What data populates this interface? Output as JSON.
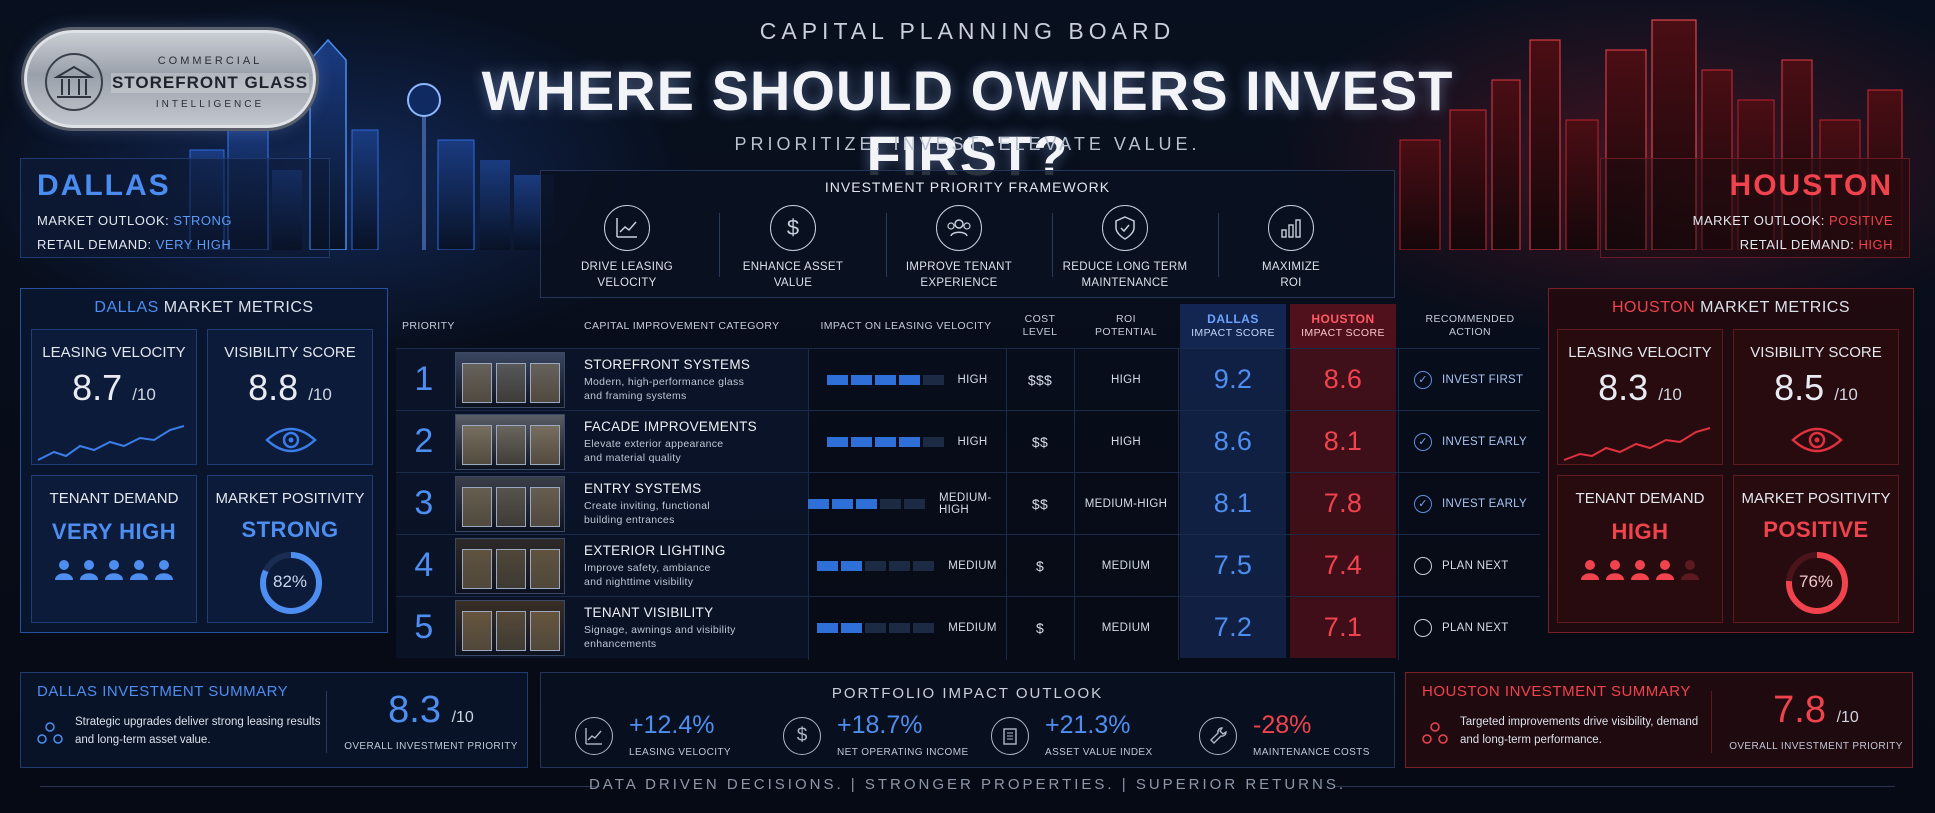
{
  "logo": {
    "line1": "COMMERCIAL",
    "line2": "STOREFRONT GLASS",
    "line3": "INTELLIGENCE"
  },
  "header": {
    "board": "CAPITAL PLANNING BOARD",
    "title": "WHERE SHOULD OWNERS INVEST FIRST?",
    "tagline": "PRIORITIZE. INVEST. ELEVATE VALUE."
  },
  "dallas": {
    "name": "DALLAS",
    "outlook_label": "MARKET OUTLOOK:",
    "outlook": "STRONG",
    "demand_label": "RETAIL DEMAND:",
    "demand": "VERY HIGH",
    "metrics_city": "DALLAS",
    "metrics_title": "MARKET METRICS",
    "leasing_label": "LEASING VELOCITY",
    "leasing_value": "8.7",
    "leasing_unit": "/10",
    "visibility_label": "VISIBILITY SCORE",
    "visibility_value": "8.8",
    "visibility_unit": "/10",
    "tenant_label": "TENANT DEMAND",
    "tenant_value": "VERY HIGH",
    "tenant_icons_filled": 5,
    "positivity_label": "MARKET POSITIVITY",
    "positivity_value": "STRONG",
    "positivity_pct": "82%",
    "positivity_fraction": 0.82,
    "summary_title": "DALLAS INVESTMENT SUMMARY",
    "summary_text": "Strategic upgrades deliver strong leasing results and long-term asset value.",
    "summary_value": "8.3",
    "summary_unit": "/10",
    "summary_label": "OVERALL INVESTMENT PRIORITY",
    "accent": "#4d8ef0"
  },
  "houston": {
    "name": "HOUSTON",
    "outlook_label": "MARKET OUTLOOK:",
    "outlook": "POSITIVE",
    "demand_label": "RETAIL DEMAND:",
    "demand": "HIGH",
    "metrics_city": "HOUSTON",
    "metrics_title": "MARKET METRICS",
    "leasing_label": "LEASING VELOCITY",
    "leasing_value": "8.3",
    "leasing_unit": "/10",
    "visibility_label": "VISIBILITY SCORE",
    "visibility_value": "8.5",
    "visibility_unit": "/10",
    "tenant_label": "TENANT DEMAND",
    "tenant_value": "HIGH",
    "tenant_icons_filled": 4,
    "positivity_label": "MARKET POSITIVITY",
    "positivity_value": "POSITIVE",
    "positivity_pct": "76%",
    "positivity_fraction": 0.76,
    "summary_title": "HOUSTON INVESTMENT SUMMARY",
    "summary_text": "Targeted improvements drive visibility, demand and long-term performance.",
    "summary_value": "7.8",
    "summary_unit": "/10",
    "summary_label": "OVERALL INVESTMENT PRIORITY",
    "accent": "#f0434d"
  },
  "framework": {
    "title": "INVESTMENT PRIORITY FRAMEWORK",
    "items": [
      {
        "icon": "chart-growth-icon",
        "line1": "DRIVE LEASING",
        "line2": "VELOCITY"
      },
      {
        "icon": "dollar-icon",
        "line1": "ENHANCE ASSET",
        "line2": "VALUE"
      },
      {
        "icon": "people-icon",
        "line1": "IMPROVE TENANT",
        "line2": "EXPERIENCE"
      },
      {
        "icon": "shield-check-icon",
        "line1": "REDUCE LONG TERM",
        "line2": "MAINTENANCE"
      },
      {
        "icon": "bar-chart-icon",
        "line1": "MAXIMIZE",
        "line2": "ROI"
      }
    ]
  },
  "table": {
    "headers": {
      "priority": "PRIORITY",
      "category": "CAPITAL IMPROVEMENT CATEGORY",
      "impact": "IMPACT ON LEASING VELOCITY",
      "cost1": "COST",
      "cost2": "LEVEL",
      "roi1": "ROI",
      "roi2": "POTENTIAL",
      "dal1": "DALLAS",
      "dal2": "IMPACT SCORE",
      "hou1": "HOUSTON",
      "hou2": "IMPACT SCORE",
      "action1": "RECOMMENDED",
      "action2": "ACTION"
    },
    "rows": [
      {
        "priority": "1",
        "title": "STOREFRONT SYSTEMS",
        "desc1": "Modern, high-performance glass",
        "desc2": "and framing systems",
        "impact": "HIGH",
        "impact_segments": 4,
        "cost": "$$$",
        "roi": "HIGH",
        "dallas": "9.2",
        "houston": "8.6",
        "action": "INVEST FIRST",
        "checked": true
      },
      {
        "priority": "2",
        "title": "FACADE IMPROVEMENTS",
        "desc1": "Elevate exterior appearance",
        "desc2": "and material quality",
        "impact": "HIGH",
        "impact_segments": 4,
        "cost": "$$",
        "roi": "HIGH",
        "dallas": "8.6",
        "houston": "8.1",
        "action": "INVEST EARLY",
        "checked": true
      },
      {
        "priority": "3",
        "title": "ENTRY SYSTEMS",
        "desc1": "Create inviting, functional",
        "desc2": "building entrances",
        "impact": "MEDIUM-HIGH",
        "impact_segments": 3,
        "cost": "$$",
        "roi": "MEDIUM-HIGH",
        "dallas": "8.1",
        "houston": "7.8",
        "action": "INVEST EARLY",
        "checked": true
      },
      {
        "priority": "4",
        "title": "EXTERIOR LIGHTING",
        "desc1": "Improve safety, ambiance",
        "desc2": "and nighttime visibility",
        "impact": "MEDIUM",
        "impact_segments": 2,
        "cost": "$",
        "roi": "MEDIUM",
        "dallas": "7.5",
        "houston": "7.4",
        "action": "PLAN NEXT",
        "checked": false
      },
      {
        "priority": "5",
        "title": "TENANT VISIBILITY",
        "desc1": "Signage, awnings and visibility",
        "desc2": "enhancements",
        "impact": "MEDIUM",
        "impact_segments": 2,
        "cost": "$",
        "roi": "MEDIUM",
        "dallas": "7.2",
        "houston": "7.1",
        "action": "PLAN NEXT",
        "checked": false
      }
    ]
  },
  "outlook": {
    "title": "PORTFOLIO IMPACT OUTLOOK",
    "items": [
      {
        "icon": "chart-growth-icon",
        "value": "+12.4%",
        "label": "LEASING VELOCITY"
      },
      {
        "icon": "dollar-icon",
        "value": "+18.7%",
        "label": "NET OPERATING INCOME"
      },
      {
        "icon": "building-icon",
        "value": "+21.3%",
        "label": "ASSET VALUE INDEX"
      },
      {
        "icon": "wrench-icon",
        "value": "-28%",
        "label": "MAINTENANCE COSTS"
      }
    ]
  },
  "footer": "DATA DRIVEN DECISIONS.  |  STRONGER PROPERTIES.  |  SUPERIOR RETURNS."
}
